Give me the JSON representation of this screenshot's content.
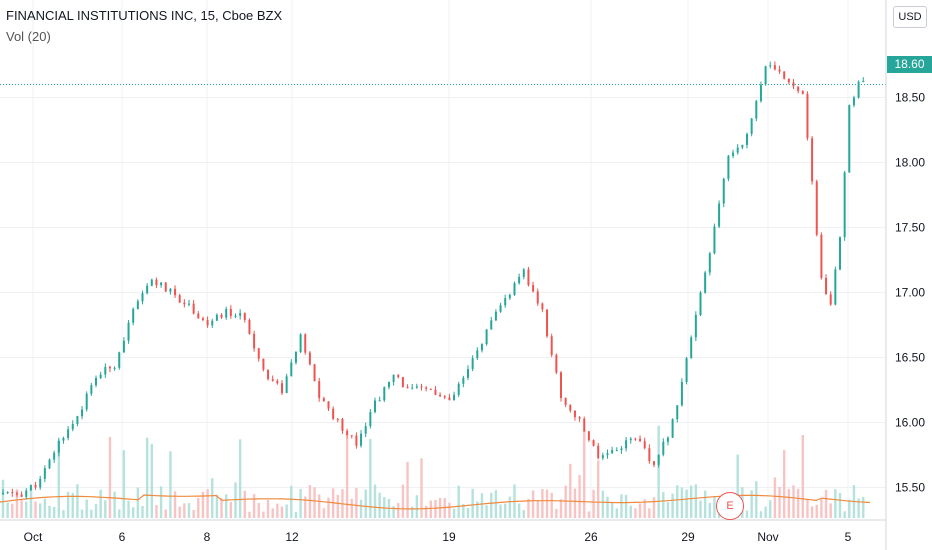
{
  "legend": {
    "title": "FINANCIAL INSTITUTIONS INC, 15, Cboe BZX",
    "indicator": "Vol (20)"
  },
  "toolbar": {
    "currency": "USD"
  },
  "last_price_tag": "18.60",
  "earnings_marker": "E",
  "colors": {
    "up": "#26a69a",
    "down": "#ef5350",
    "ma": "#f08a3c",
    "grid": "#eef0f4"
  },
  "chart_data": {
    "type": "candlestick",
    "interval": "15",
    "symbol": "FINANCIAL INSTITUTIONS INC",
    "exchange": "Cboe BZX",
    "currency": "USD",
    "last_price": 18.6,
    "ylim": [
      15.25,
      19.25
    ],
    "y_ticks": [
      15.5,
      16.0,
      16.5,
      17.0,
      17.5,
      18.0,
      18.5
    ],
    "x_ticks": [
      "Oct",
      "6",
      "8",
      "12",
      "19",
      "26",
      "29",
      "Nov",
      "5"
    ],
    "volume_indicator": "Vol (20)",
    "close_path": [
      [
        0,
        15.45
      ],
      [
        4,
        15.45
      ],
      [
        8,
        15.55
      ],
      [
        12,
        15.85
      ],
      [
        16,
        16.05
      ],
      [
        20,
        16.35
      ],
      [
        24,
        16.45
      ],
      [
        28,
        16.85
      ],
      [
        32,
        17.1
      ],
      [
        36,
        17.0
      ],
      [
        40,
        16.9
      ],
      [
        44,
        16.75
      ],
      [
        48,
        16.85
      ],
      [
        52,
        16.8
      ],
      [
        56,
        16.4
      ],
      [
        60,
        16.25
      ],
      [
        64,
        16.65
      ],
      [
        68,
        16.2
      ],
      [
        72,
        16.0
      ],
      [
        76,
        15.85
      ],
      [
        80,
        16.15
      ],
      [
        84,
        16.35
      ],
      [
        88,
        16.25
      ],
      [
        92,
        16.25
      ],
      [
        96,
        16.15
      ],
      [
        100,
        16.4
      ],
      [
        104,
        16.7
      ],
      [
        108,
        16.95
      ],
      [
        112,
        17.15
      ],
      [
        116,
        16.85
      ],
      [
        120,
        16.2
      ],
      [
        124,
        16.0
      ],
      [
        128,
        15.75
      ],
      [
        132,
        15.8
      ],
      [
        136,
        15.9
      ],
      [
        140,
        15.65
      ],
      [
        144,
        16.0
      ],
      [
        148,
        16.65
      ],
      [
        152,
        17.3
      ],
      [
        156,
        18.05
      ],
      [
        160,
        18.2
      ],
      [
        164,
        18.75
      ],
      [
        168,
        18.65
      ],
      [
        172,
        18.55
      ],
      [
        176,
        17.1
      ],
      [
        178,
        16.9
      ],
      [
        180,
        17.4
      ],
      [
        182,
        18.45
      ],
      [
        184,
        18.6
      ]
    ],
    "earnings": "E"
  }
}
